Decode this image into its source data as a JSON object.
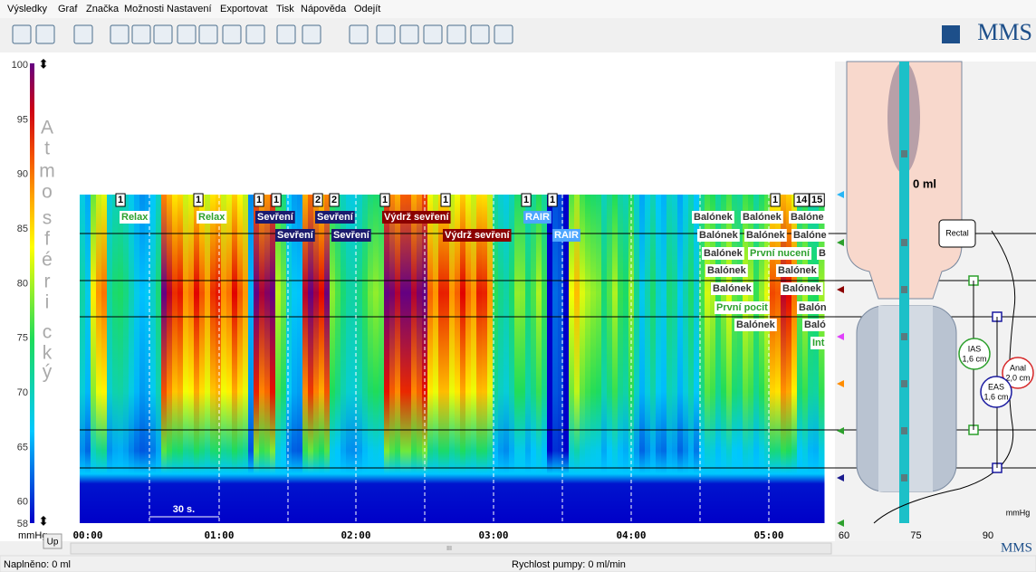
{
  "menu": [
    "Výsledky",
    "Graf",
    "Značka",
    "Možnosti",
    "Nastavení",
    "Exportovat",
    "Tisk",
    "Nápověda",
    "Odejít"
  ],
  "logo": "MMS",
  "scale": {
    "letters": [
      "A",
      "t",
      "m",
      "o",
      "s",
      "f",
      "é",
      "r",
      "i",
      "c",
      "k",
      "ý"
    ],
    "ticks": [
      100,
      95,
      90,
      85,
      80,
      75,
      70,
      65,
      60,
      58
    ],
    "unit": "mmHg",
    "button": "Up"
  },
  "time_axis": [
    "00:00",
    "01:00",
    "02:00",
    "03:00",
    "04:00",
    "05:00"
  ],
  "scale_bar": "30 s.",
  "events": [
    "1",
    "1",
    "1",
    "1",
    "2",
    "2",
    "1",
    "1",
    "1",
    "1",
    "1",
    "14",
    "15",
    "Relax",
    "Relax",
    "Sevření",
    "Sevření",
    "Výdrž sevření",
    "RAIR",
    "Balónek",
    "Balónek",
    "Balóne",
    "Sevření",
    "Sevření",
    "Výdrž sevření",
    "RAIR",
    "Balónek",
    "Balónek",
    "Balóne",
    "Balónek",
    "První nucení",
    "B",
    "Balónek",
    "Balónek",
    "Balónek",
    "Balónek",
    "První pocit",
    "Balón",
    "Balónek",
    "Baló",
    "Int"
  ],
  "panel": {
    "volume": "0 ml",
    "rectal": "Rectal",
    "ias": [
      "IAS",
      "1,6 cm"
    ],
    "eas": [
      "EAS",
      "1,6 cm"
    ],
    "anal": [
      "Anal",
      "2,0 cm"
    ],
    "unit": "mmHg",
    "axis": [
      60,
      75,
      90
    ],
    "logo": "MMS"
  },
  "scroll_grip": "III",
  "status": {
    "filled": "Naplněno: 0 ml",
    "pump": "Rychlost pumpy: 0 ml/min"
  }
}
